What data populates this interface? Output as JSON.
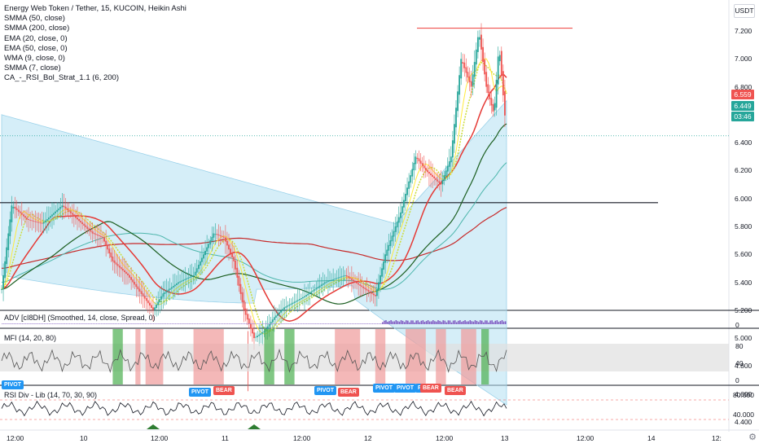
{
  "legend": {
    "title": "Energy Web Token / Tether, 15, KUCOIN, Heikin Ashi",
    "studies": [
      "SMMA (50, close)",
      "SMMA (200, close)",
      "EMA (20, close, 0)",
      "EMA (50, close, 0)",
      "WMA (9, close, 0)",
      "SMMA (7, close)",
      "CA_-_RSI_Bol_Strat_1.1 (6, 200)"
    ]
  },
  "currency_label": "USDT",
  "price_axis": {
    "ticks": [
      "7.200",
      "7.000",
      "6.800",
      "6.600",
      "6.400",
      "6.200",
      "6.000",
      "5.800",
      "5.600",
      "5.400",
      "5.200",
      "5.000",
      "4.800",
      "4.600",
      "4.400"
    ],
    "tags": [
      {
        "label": "6.559",
        "color": "#ef5350"
      },
      {
        "label": "6.449",
        "color": "#26a69a"
      },
      {
        "label": "03:46",
        "color": "#26a69a"
      }
    ]
  },
  "time_axis": {
    "ticks": [
      "12:00",
      "10",
      "12:00",
      "11",
      "12:00",
      "12",
      "12:00",
      "13",
      "12:00",
      "14",
      "12:"
    ]
  },
  "panes": {
    "adv": {
      "label": "ADV [cI8DH] (Smoothed, 14, close, Spread, 0)",
      "ticks": [
        "0"
      ]
    },
    "mfi": {
      "label": "MFI (14, 20, 80)",
      "ticks": [
        "80",
        "40",
        "0"
      ]
    },
    "rsi": {
      "label": "RSI Div - Lib (14, 70, 30, 90)",
      "ticks": [
        "80.000",
        "40.000"
      ],
      "markers": [
        {
          "label": "PIVOT",
          "kind": "pivot"
        },
        {
          "label": "BEAR",
          "kind": "bear"
        },
        {
          "label": "PIVOT",
          "kind": "pivot"
        },
        {
          "label": "BEAR",
          "kind": "bear"
        },
        {
          "label": "PIVOT",
          "kind": "pivot"
        },
        {
          "label": "PIVOT",
          "kind": "pivot"
        },
        {
          "label": "PIVOT",
          "kind": "pivot"
        },
        {
          "label": "BEAR",
          "kind": "bear"
        },
        {
          "label": "BEAR",
          "kind": "bear"
        }
      ]
    }
  },
  "colors": {
    "bull": "#26a69a",
    "bear": "#ef5350",
    "band": "#b3e0f2",
    "mfi_band": "#e0e0e0",
    "green_zone": "#4caf50",
    "red_zone": "#ef9a9a"
  },
  "settings_icon": "gear-icon"
}
